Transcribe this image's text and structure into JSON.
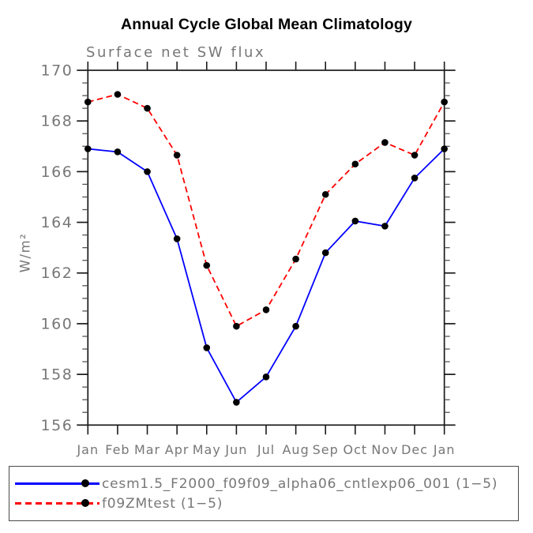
{
  "title": "Annual Cycle Global Mean Climatology",
  "subtitle": "Surface net SW flux",
  "colors": {
    "text_muted": "#777777",
    "axis": "#1a1a1a",
    "series1": "#0000ff",
    "series2": "#ff0000",
    "marker": "#000000"
  },
  "chart_data": {
    "type": "line",
    "title": "Annual Cycle Global Mean Climatology",
    "subtitle": "Surface net SW flux",
    "xlabel": "",
    "ylabel": "W/m²",
    "categories": [
      "Jan",
      "Feb",
      "Mar",
      "Apr",
      "May",
      "Jun",
      "Jul",
      "Aug",
      "Sep",
      "Oct",
      "Nov",
      "Dec",
      "Jan"
    ],
    "ylim": [
      156,
      170
    ],
    "yticks": [
      156,
      158,
      160,
      162,
      164,
      166,
      168,
      170
    ],
    "yminor_step": 0.5,
    "grid": false,
    "frame": "box-with-outward-ticks",
    "legend_position": "bottom-left-box",
    "series": [
      {
        "name": "cesm1.5_F2000_f09f09_alpha06_cntlexp06_001 (1−5)",
        "color": "#0000ff",
        "line_style": "solid",
        "marker": "filled-circle",
        "marker_color": "#000000",
        "values": [
          166.9,
          166.78,
          166.0,
          163.35,
          159.05,
          156.9,
          157.9,
          159.9,
          162.8,
          164.05,
          163.85,
          165.75,
          166.9
        ]
      },
      {
        "name": "f09ZMtest (1−5)",
        "color": "#ff0000",
        "line_style": "dashed",
        "marker": "filled-circle",
        "marker_color": "#000000",
        "values": [
          168.75,
          169.05,
          168.5,
          166.65,
          162.3,
          159.9,
          160.55,
          162.55,
          165.1,
          166.3,
          167.15,
          166.65,
          168.75
        ]
      }
    ]
  }
}
